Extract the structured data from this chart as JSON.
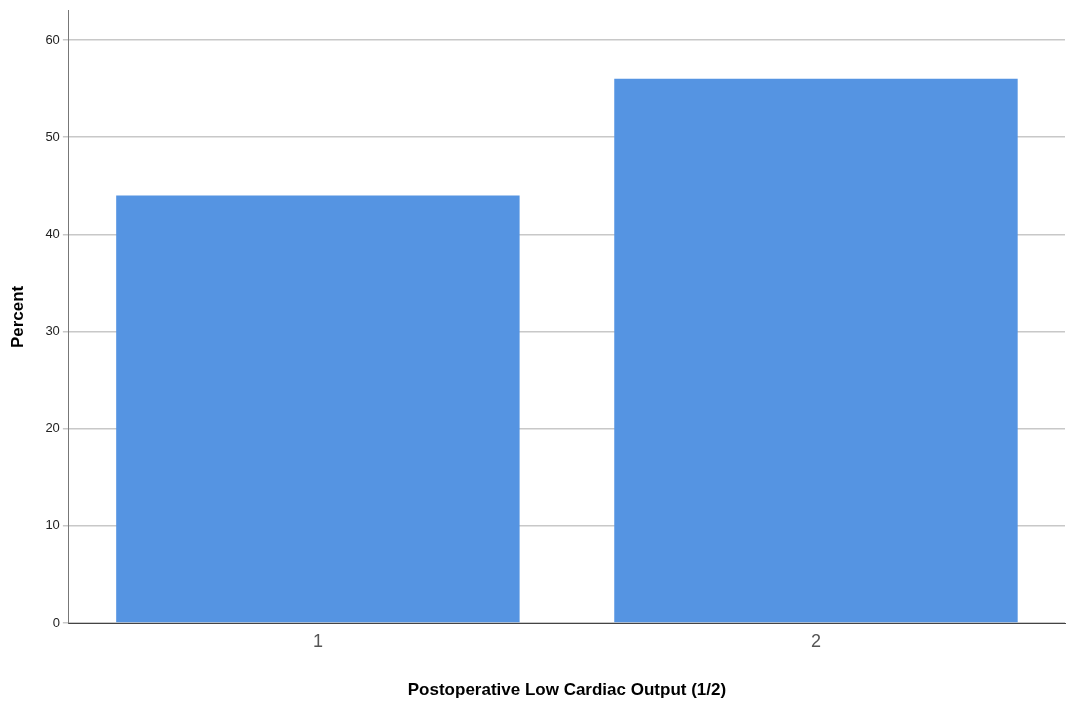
{
  "chart_data": {
    "type": "bar",
    "xlabel": "Postoperative Low Cardiac Output (1/2)",
    "ylabel": "Percent",
    "categories": [
      "1",
      "2"
    ],
    "values": [
      44,
      56
    ],
    "color": "#5594e2",
    "ylim": [
      0,
      63
    ],
    "yticks": [
      0,
      10,
      20,
      30,
      40,
      50,
      60
    ],
    "grid": "y"
  }
}
